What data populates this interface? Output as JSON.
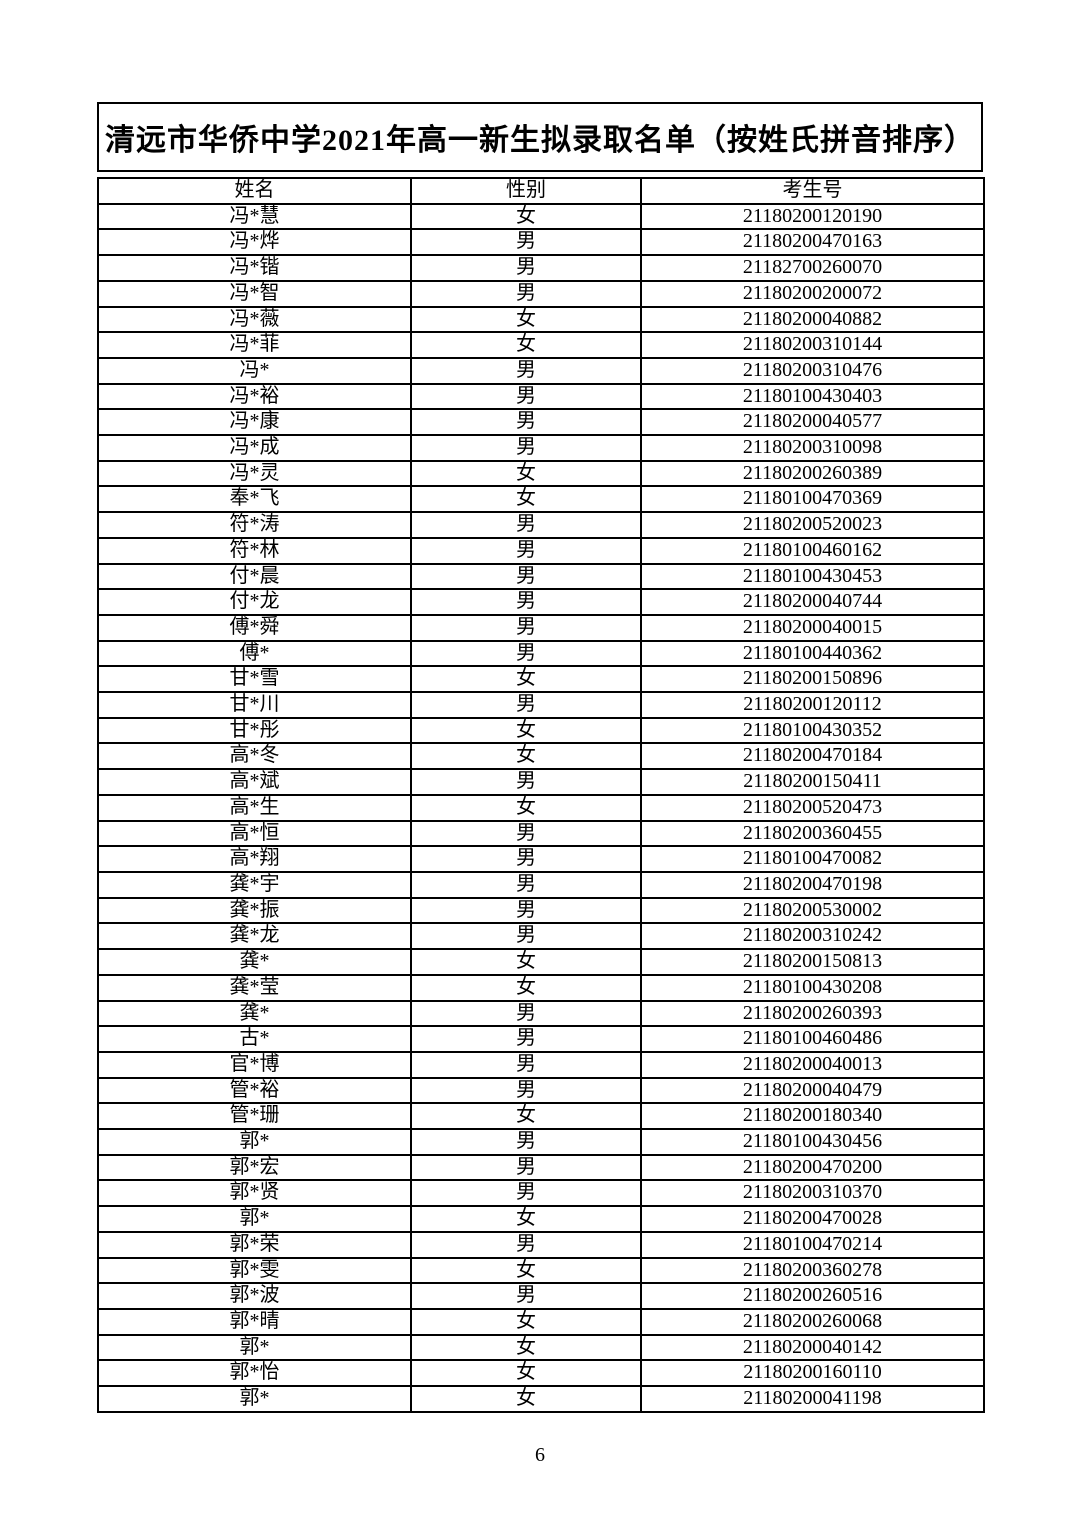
{
  "document": {
    "title": "清远市华侨中学2021年高一新生拟录取名单（按姓氏拼音排序）",
    "page_number": "6"
  },
  "table": {
    "headers": {
      "name": "姓名",
      "gender": "性别",
      "candidate_no": "考生号"
    },
    "rows": [
      {
        "name": "冯*慧",
        "gender": "女",
        "candidate_no": "21180200120190"
      },
      {
        "name": "冯*烨",
        "gender": "男",
        "candidate_no": "21180200470163"
      },
      {
        "name": "冯*锴",
        "gender": "男",
        "candidate_no": "21182700260070"
      },
      {
        "name": "冯*智",
        "gender": "男",
        "candidate_no": "21180200200072"
      },
      {
        "name": "冯*薇",
        "gender": "女",
        "candidate_no": "21180200040882"
      },
      {
        "name": "冯*菲",
        "gender": "女",
        "candidate_no": "21180200310144"
      },
      {
        "name": "冯*",
        "gender": "男",
        "candidate_no": "21180200310476"
      },
      {
        "name": "冯*裕",
        "gender": "男",
        "candidate_no": "21180100430403"
      },
      {
        "name": "冯*康",
        "gender": "男",
        "candidate_no": "21180200040577"
      },
      {
        "name": "冯*成",
        "gender": "男",
        "candidate_no": "21180200310098"
      },
      {
        "name": "冯*灵",
        "gender": "女",
        "candidate_no": "21180200260389"
      },
      {
        "name": "奉*飞",
        "gender": "女",
        "candidate_no": "21180100470369"
      },
      {
        "name": "符*涛",
        "gender": "男",
        "candidate_no": "21180200520023"
      },
      {
        "name": "符*林",
        "gender": "男",
        "candidate_no": "21180100460162"
      },
      {
        "name": "付*晨",
        "gender": "男",
        "candidate_no": "21180100430453"
      },
      {
        "name": "付*龙",
        "gender": "男",
        "candidate_no": "21180200040744"
      },
      {
        "name": "傅*舜",
        "gender": "男",
        "candidate_no": "21180200040015"
      },
      {
        "name": "傅*",
        "gender": "男",
        "candidate_no": "21180100440362"
      },
      {
        "name": "甘*雪",
        "gender": "女",
        "candidate_no": "21180200150896"
      },
      {
        "name": "甘*川",
        "gender": "男",
        "candidate_no": "21180200120112"
      },
      {
        "name": "甘*彤",
        "gender": "女",
        "candidate_no": "21180100430352"
      },
      {
        "name": "高*冬",
        "gender": "女",
        "candidate_no": "21180200470184"
      },
      {
        "name": "高*斌",
        "gender": "男",
        "candidate_no": "21180200150411"
      },
      {
        "name": "高*生",
        "gender": "女",
        "candidate_no": "21180200520473"
      },
      {
        "name": "高*恒",
        "gender": "男",
        "candidate_no": "21180200360455"
      },
      {
        "name": "高*翔",
        "gender": "男",
        "candidate_no": "21180100470082"
      },
      {
        "name": "龚*宇",
        "gender": "男",
        "candidate_no": "21180200470198"
      },
      {
        "name": "龚*振",
        "gender": "男",
        "candidate_no": "21180200530002"
      },
      {
        "name": "龚*龙",
        "gender": "男",
        "candidate_no": "21180200310242"
      },
      {
        "name": "龚*",
        "gender": "女",
        "candidate_no": "21180200150813"
      },
      {
        "name": "龚*莹",
        "gender": "女",
        "candidate_no": "21180100430208"
      },
      {
        "name": "龚*",
        "gender": "男",
        "candidate_no": "21180200260393"
      },
      {
        "name": "古*",
        "gender": "男",
        "candidate_no": "21180100460486"
      },
      {
        "name": "官*博",
        "gender": "男",
        "candidate_no": "21180200040013"
      },
      {
        "name": "管*裕",
        "gender": "男",
        "candidate_no": "21180200040479"
      },
      {
        "name": "管*珊",
        "gender": "女",
        "candidate_no": "21180200180340"
      },
      {
        "name": "郭*",
        "gender": "男",
        "candidate_no": "21180100430456"
      },
      {
        "name": "郭*宏",
        "gender": "男",
        "candidate_no": "21180200470200"
      },
      {
        "name": "郭*贤",
        "gender": "男",
        "candidate_no": "21180200310370"
      },
      {
        "name": "郭*",
        "gender": "女",
        "candidate_no": "21180200470028"
      },
      {
        "name": "郭*荣",
        "gender": "男",
        "candidate_no": "21180100470214"
      },
      {
        "name": "郭*雯",
        "gender": "女",
        "candidate_no": "21180200360278"
      },
      {
        "name": "郭*波",
        "gender": "男",
        "candidate_no": "21180200260516"
      },
      {
        "name": "郭*晴",
        "gender": "女",
        "candidate_no": "21180200260068"
      },
      {
        "name": "郭*",
        "gender": "女",
        "candidate_no": "21180200040142"
      },
      {
        "name": "郭*怡",
        "gender": "女",
        "candidate_no": "21180200160110"
      },
      {
        "name": "郭*",
        "gender": "女",
        "candidate_no": "21180200041198"
      }
    ]
  }
}
